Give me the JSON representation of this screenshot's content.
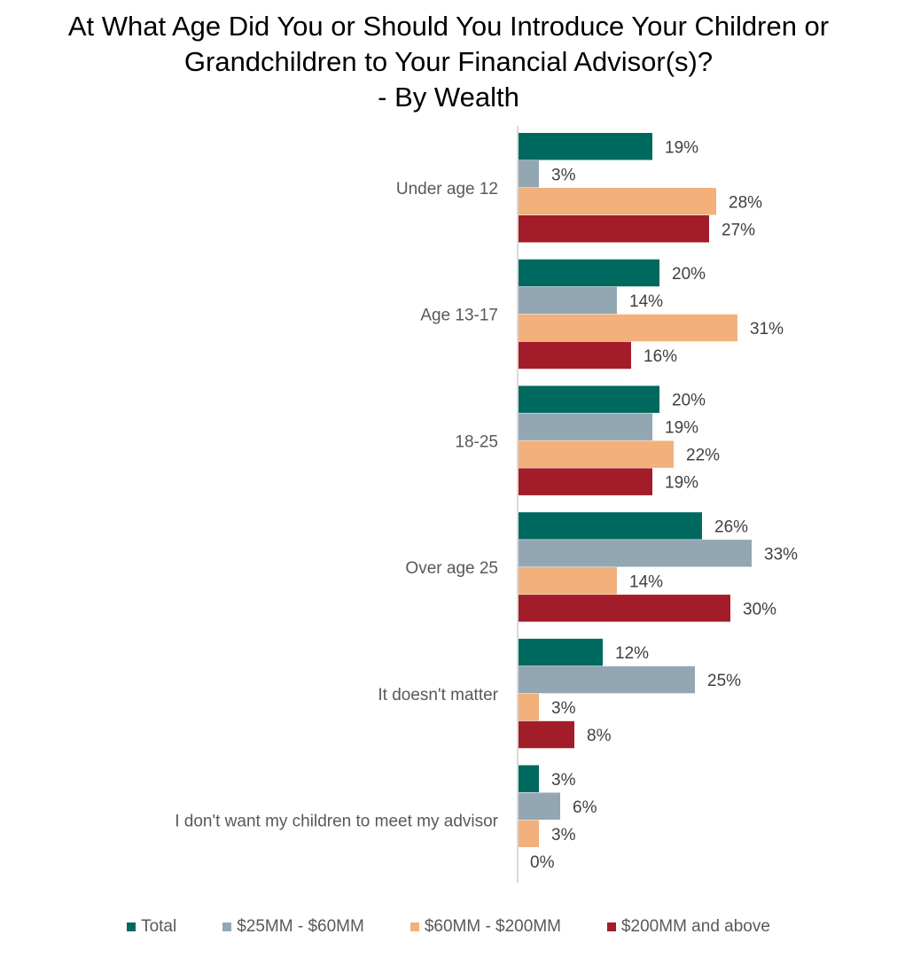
{
  "chart_data": {
    "type": "bar",
    "orientation": "horizontal",
    "title_lines": [
      "At What Age Did You or Should You Introduce Your Children or",
      "Grandchildren to Your Financial Advisor(s)?",
      "- By Wealth"
    ],
    "categories": [
      "Under age 12",
      "Age 13-17",
      "18-25",
      "Over age 25",
      "It doesn't matter",
      "I don't want my children to meet my advisor"
    ],
    "series": [
      {
        "name": "Total",
        "color": "#00695f",
        "values": [
          19,
          20,
          20,
          26,
          12,
          3
        ],
        "labels": [
          "19%",
          "20%",
          "20%",
          "26%",
          "12%",
          "3%"
        ]
      },
      {
        "name": "$25MM - $60MM",
        "color": "#93a7b3",
        "values": [
          3,
          14,
          19,
          33,
          25,
          6
        ],
        "labels": [
          "3%",
          "14%",
          "19%",
          "33%",
          "25%",
          "6%"
        ]
      },
      {
        "name": "$60MM - $200MM",
        "color": "#f3b07a",
        "values": [
          28,
          31,
          22,
          14,
          3,
          3
        ],
        "labels": [
          "28%",
          "31%",
          "22%",
          "14%",
          "3%",
          "3%"
        ]
      },
      {
        "name": "$200MM and above",
        "color": "#a21d29",
        "values": [
          27,
          16,
          19,
          30,
          8,
          0
        ],
        "labels": [
          "27%",
          "16%",
          "19%",
          "30%",
          "8%",
          "0%"
        ]
      }
    ],
    "xlim": [
      0,
      40
    ],
    "grid": false,
    "legend_position": "bottom",
    "axis_color": "#d9d9d9"
  }
}
